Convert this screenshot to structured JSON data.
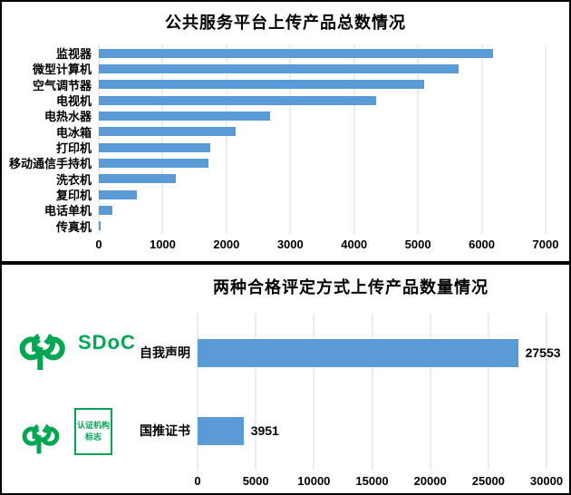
{
  "colors": {
    "bar_blue": "#5B9BD5",
    "gridline_gray": "#D9D9D9",
    "logo_green": "#00A651",
    "text_black": "#000000"
  },
  "logos": {
    "sdoc_label": "SDoC",
    "cert_box_line1": "认证机构",
    "cert_box_line2": "标志"
  },
  "chart_data": [
    {
      "type": "bar",
      "orientation": "horizontal",
      "title": "公共服务平台上传产品总数情况",
      "categories": [
        "监视器",
        "微型计算机",
        "空气调节器",
        "电视机",
        "电热水器",
        "电冰箱",
        "打印机",
        "移动通信手持机",
        "洗衣机",
        "复印机",
        "电话单机",
        "传真机"
      ],
      "values": [
        6180,
        5630,
        5100,
        4350,
        2690,
        2140,
        1745,
        1720,
        1210,
        600,
        220,
        25
      ],
      "x_ticks": [
        0,
        1000,
        2000,
        3000,
        4000,
        5000,
        6000,
        7000
      ],
      "xlim": [
        0,
        7000
      ],
      "grid": true,
      "legend": "none",
      "data_labels": false
    },
    {
      "type": "bar",
      "orientation": "horizontal",
      "title": "两种合格评定方式上传产品数量情况",
      "categories": [
        "自我声明",
        "国推证书"
      ],
      "values": [
        27553,
        3951
      ],
      "x_ticks": [
        0,
        5000,
        10000,
        15000,
        20000,
        25000,
        30000
      ],
      "xlim": [
        0,
        30000
      ],
      "grid": true,
      "legend": "none",
      "data_labels": true
    }
  ]
}
